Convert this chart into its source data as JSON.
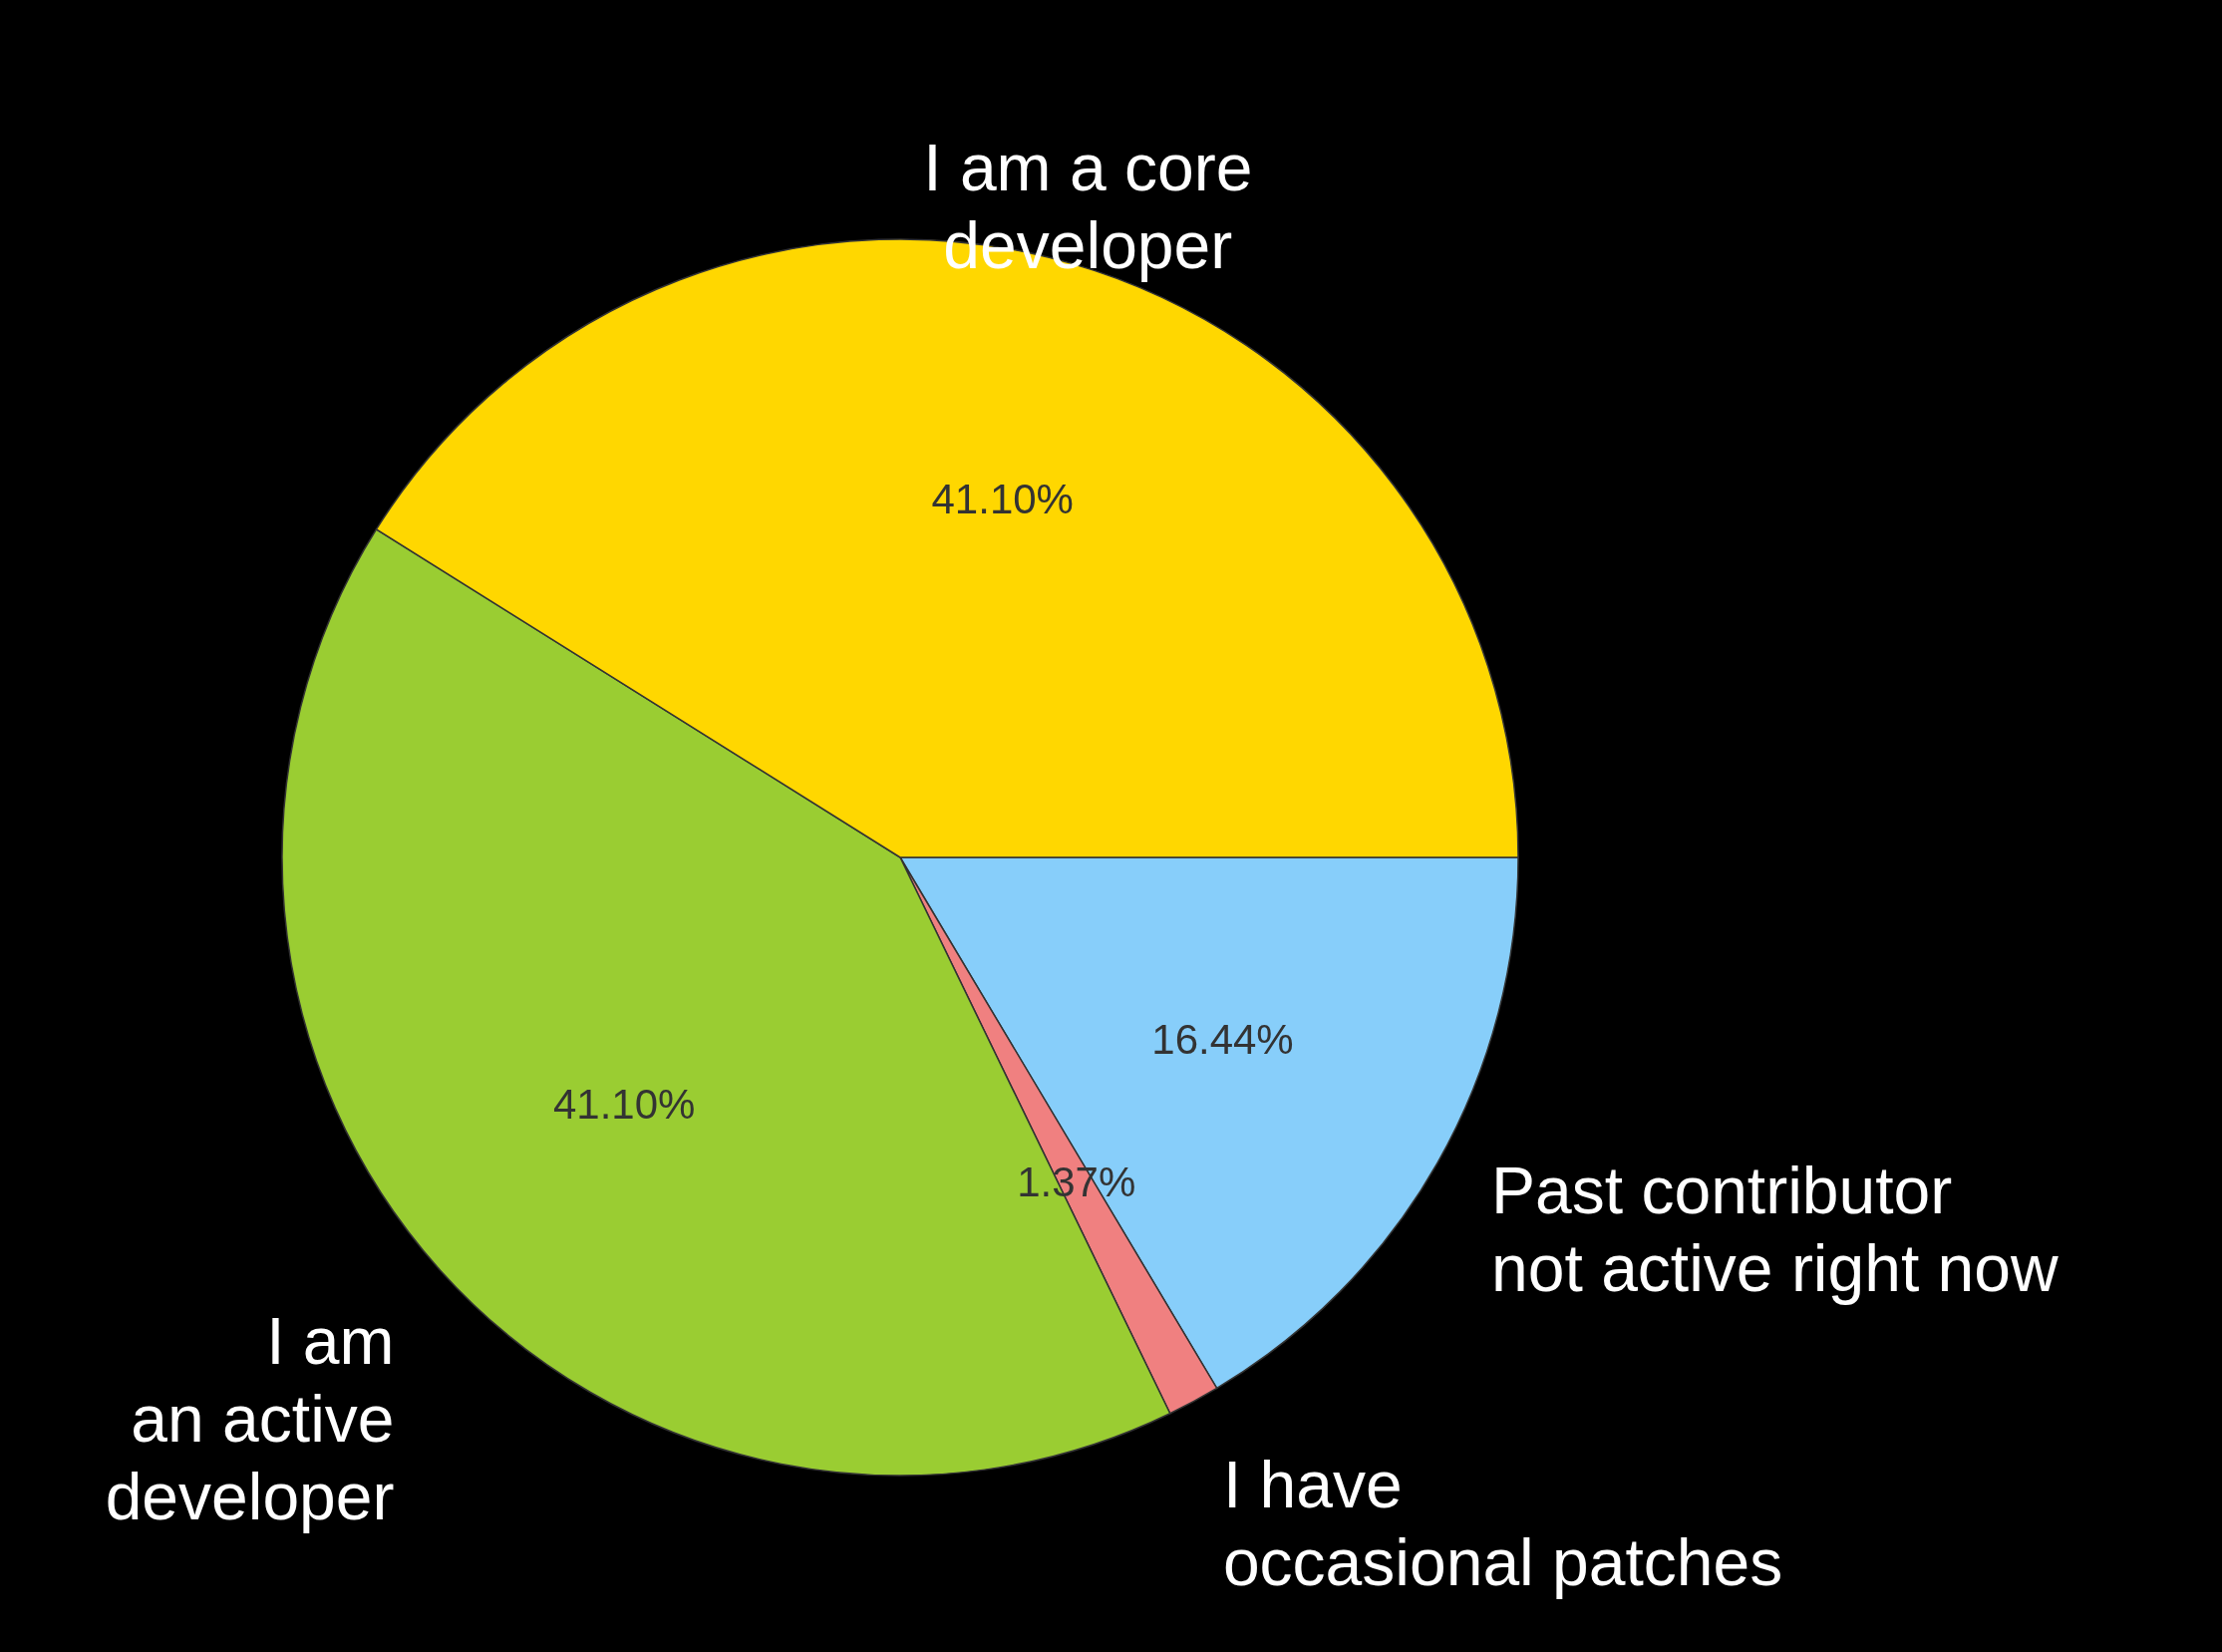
{
  "chart_data": {
    "type": "pie",
    "categories": [
      "I am a core\ndeveloper",
      "I am\nan active\ndeveloper",
      "I have\noccasional patches",
      "Past contributor\nnot active right now"
    ],
    "values": [
      41.1,
      41.1,
      1.37,
      16.44
    ],
    "colors": [
      "#ffd700",
      "#9acd32",
      "#f08080",
      "#87cefa"
    ],
    "value_labels": [
      "41.10%",
      "41.10%",
      "1.37%",
      "16.44%"
    ]
  }
}
